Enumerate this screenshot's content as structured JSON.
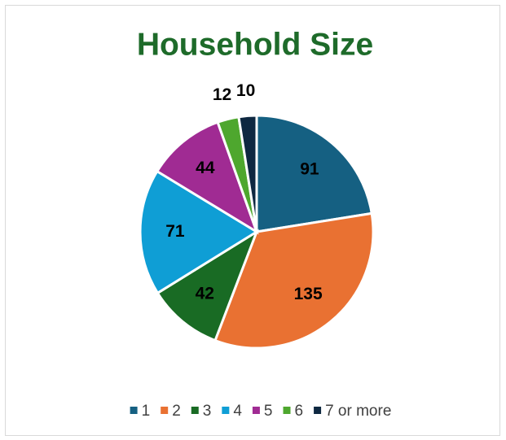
{
  "chart_data": {
    "type": "pie",
    "title": "Household Size",
    "categories": [
      "1",
      "2",
      "3",
      "4",
      "5",
      "6",
      "7 or more"
    ],
    "values": [
      91,
      135,
      42,
      71,
      44,
      12,
      10
    ],
    "colors": [
      "#156082",
      "#e97132",
      "#196b24",
      "#0f9ed5",
      "#a02b93",
      "#4ea72e",
      "#0e2841"
    ],
    "legend": "bottom"
  }
}
